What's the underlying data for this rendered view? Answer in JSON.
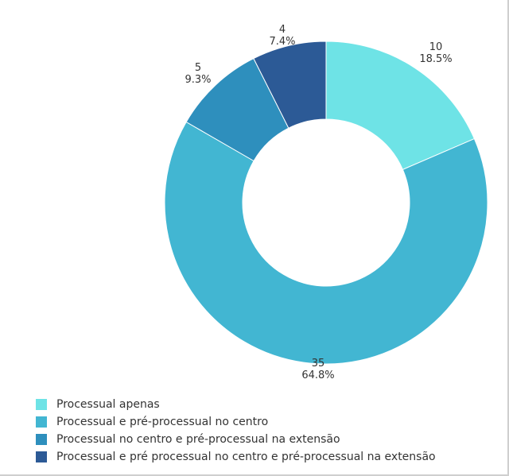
{
  "chart_data": {
    "type": "donut",
    "slices": [
      {
        "label": "Processual apenas",
        "value": 10,
        "percent": "18.5%",
        "color": "#6ee3e6"
      },
      {
        "label": "Processual e pré-processual no centro",
        "value": 35,
        "percent": "64.8%",
        "color": "#42b6d2"
      },
      {
        "label": "Processual no centro e pré-processual na extensão",
        "value": 5,
        "percent": "9.3%",
        "color": "#2e8fbd"
      },
      {
        "label": "Processual e pré processual no centro e pré-processual na extensão",
        "value": 4,
        "percent": "7.4%",
        "color": "#2c5a96"
      }
    ],
    "legend_position": "bottom-left",
    "start_angle": "top, clockwise"
  }
}
